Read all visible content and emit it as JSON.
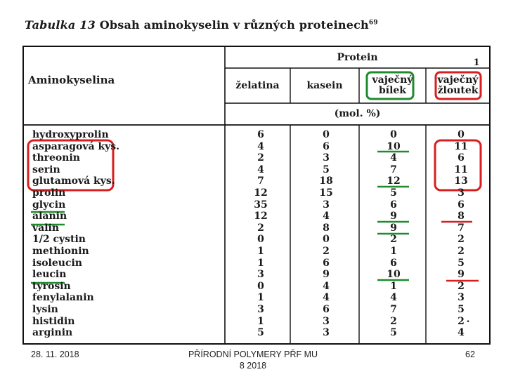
{
  "table": {
    "caption_label": "Tabulka 13",
    "caption_text": "Obsah aminokyselin v různých proteinech",
    "caption_sup": "69",
    "protein_header": "Protein",
    "amino_header": "Aminokyselina",
    "unit": "(mol. %)",
    "corner_mark": "1",
    "columns": [
      "želatina",
      "kasein",
      "vaječný bílek",
      "vaječný žloutek"
    ],
    "column_lines": [
      [
        "želatina"
      ],
      [
        "kasein"
      ],
      [
        "vaječný",
        "bílek"
      ],
      [
        "vaječný",
        "žloutek"
      ]
    ],
    "rows": [
      {
        "name": "hydroxyprolin",
        "values": [
          "6",
          "0",
          "0",
          "0"
        ]
      },
      {
        "name": "asparagová kys.",
        "values": [
          "4",
          "6",
          "10",
          "11"
        ]
      },
      {
        "name": "threonin",
        "values": [
          "2",
          "3",
          "4",
          "6"
        ]
      },
      {
        "name": "serin",
        "values": [
          "4",
          "5",
          "7",
          "11"
        ]
      },
      {
        "name": "glutamová kys.",
        "values": [
          "7",
          "18",
          "12",
          "13"
        ]
      },
      {
        "name": "prolin",
        "values": [
          "12",
          "15",
          "5",
          "3"
        ]
      },
      {
        "name": "glycin",
        "values": [
          "35",
          "3",
          "6",
          "6"
        ]
      },
      {
        "name": "alanin",
        "values": [
          "12",
          "4",
          "9",
          "8"
        ]
      },
      {
        "name": "valin",
        "values": [
          "2",
          "8",
          "9",
          "7"
        ]
      },
      {
        "name": "1/2 cystin",
        "values": [
          "0",
          "0",
          "2",
          "2"
        ]
      },
      {
        "name": "methionin",
        "values": [
          "1",
          "2",
          "1",
          "2"
        ]
      },
      {
        "name": "isoleucin",
        "values": [
          "1",
          "6",
          "6",
          "5"
        ]
      },
      {
        "name": "leucin",
        "values": [
          "3",
          "9",
          "10",
          "9"
        ]
      },
      {
        "name": "tyrosin",
        "values": [
          "0",
          "4",
          "1",
          "2"
        ]
      },
      {
        "name": "fenylalanin",
        "values": [
          "1",
          "4",
          "4",
          "3"
        ]
      },
      {
        "name": "lysin",
        "values": [
          "3",
          "6",
          "7",
          "5"
        ]
      },
      {
        "name": "histidin",
        "values": [
          "1",
          "3",
          "2",
          "2"
        ]
      },
      {
        "name": "arginin",
        "values": [
          "5",
          "3",
          "5",
          "4"
        ]
      }
    ],
    "trailing_dot": "."
  },
  "annotations": {
    "green_color": "#1f8a2e",
    "red_color": "#d81e1e"
  },
  "footer": {
    "date": "28. 11. 2018",
    "title_line1": "PŘÍRODNÍ POLYMERY PŘF MU",
    "title_line2": "8 2018",
    "page": "62"
  }
}
